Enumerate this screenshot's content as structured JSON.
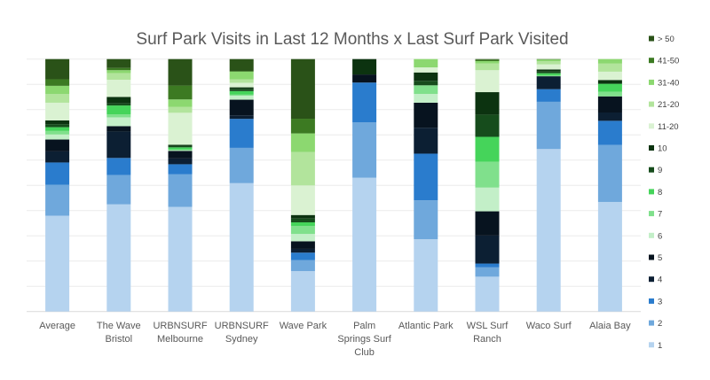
{
  "chart_data": {
    "type": "bar",
    "stacked": "percent",
    "title": "Surf Park Visits in Last 12 Months x Last Surf Park Visited",
    "xlabel": "",
    "ylabel": "",
    "ylim": [
      0,
      100
    ],
    "grid": true,
    "legend_position": "right",
    "categories": [
      "Average",
      "The Wave Bristol",
      "URBNSURF Melbourne",
      "URBNSURF Sydney",
      "Wave Park",
      "Palm Springs Surf Club",
      "Atlantic Park",
      "WSL Surf Ranch",
      "Waco Surf",
      "Alaia Bay"
    ],
    "category_lines": [
      [
        "Average"
      ],
      [
        "The Wave",
        "Bristol"
      ],
      [
        "URBNSURF",
        "Melbourne"
      ],
      [
        "URBNSURF",
        "Sydney"
      ],
      [
        "Wave Park"
      ],
      [
        "Palm",
        "Springs Surf",
        "Club"
      ],
      [
        "Atlantic Park"
      ],
      [
        "WSL Surf",
        "Ranch"
      ],
      [
        "Waco Surf"
      ],
      [
        "Alaia Bay"
      ]
    ],
    "series": [
      {
        "name": "1",
        "color": "#b5d3ef",
        "values": [
          38.0,
          42.5,
          41.5,
          50.9,
          16.0,
          53.0,
          28.7,
          13.8,
          64.3,
          43.5
        ]
      },
      {
        "name": "2",
        "color": "#6fa8dc",
        "values": [
          12.3,
          11.6,
          12.9,
          14.0,
          4.4,
          21.9,
          15.4,
          3.7,
          18.7,
          22.6
        ]
      },
      {
        "name": "3",
        "color": "#2a7ccd",
        "values": [
          8.8,
          6.8,
          4.0,
          11.5,
          2.9,
          15.8,
          18.5,
          1.5,
          5.0,
          9.6
        ]
      },
      {
        "name": "4",
        "color": "#0c1f33",
        "values": [
          4.4,
          10.5,
          2.3,
          1.4,
          1.5,
          0,
          10.3,
          11.1,
          5.1,
          3.3
        ]
      },
      {
        "name": "5",
        "color": "#07131f",
        "values": [
          4.7,
          2.1,
          3.0,
          6.2,
          3.0,
          3.2,
          9.9,
          9.6,
          0,
          6.4
        ]
      },
      {
        "name": "6",
        "color": "#c3efc8",
        "values": [
          2.0,
          3.5,
          0.2,
          1.6,
          2.9,
          0,
          3.5,
          9.4,
          0,
          0
        ]
      },
      {
        "name": "7",
        "color": "#80e08c",
        "values": [
          1.4,
          1.2,
          0.3,
          0.4,
          3.2,
          0,
          3.4,
          10.2,
          0.4,
          1.8
        ]
      },
      {
        "name": "8",
        "color": "#45d45a",
        "values": [
          1.5,
          3.5,
          0.9,
          1.4,
          1.4,
          0,
          0,
          9.9,
          0.8,
          3.2
        ]
      },
      {
        "name": "9",
        "color": "#164c1c",
        "values": [
          1.2,
          0.8,
          0.5,
          0.9,
          1.5,
          0,
          1.8,
          8.8,
          0.7,
          0
        ]
      },
      {
        "name": "10",
        "color": "#0c3310",
        "values": [
          1.5,
          2.6,
          0.5,
          0.6,
          1.4,
          6.1,
          3.3,
          8.9,
          0.8,
          1.5
        ]
      },
      {
        "name": "11-20",
        "color": "#daf2d2",
        "values": [
          7.0,
          6.8,
          12.7,
          1.8,
          11.7,
          0,
          2.0,
          8.7,
          2.0,
          3.3
        ]
      },
      {
        "name": "21-20",
        "color": "#b2e49c",
        "values": [
          3.5,
          2.6,
          2.3,
          1.4,
          13.2,
          0,
          0,
          2.7,
          1.2,
          3.2
        ]
      },
      {
        "name": "31-40",
        "color": "#8cd870",
        "values": [
          3.2,
          1.2,
          3.0,
          3.0,
          7.4,
          0,
          3.3,
          0.9,
          0.7,
          1.8
        ]
      },
      {
        "name": "41-50",
        "color": "#3c7a22",
        "values": [
          2.6,
          0.9,
          5.5,
          0.3,
          5.8,
          0,
          0,
          0.6,
          0.2,
          0
        ]
      },
      {
        "name": "> 50",
        "color": "#2a5218",
        "values": [
          8.0,
          3.5,
          10.5,
          4.7,
          23.6,
          0,
          0,
          0.2,
          0,
          0
        ]
      }
    ]
  }
}
